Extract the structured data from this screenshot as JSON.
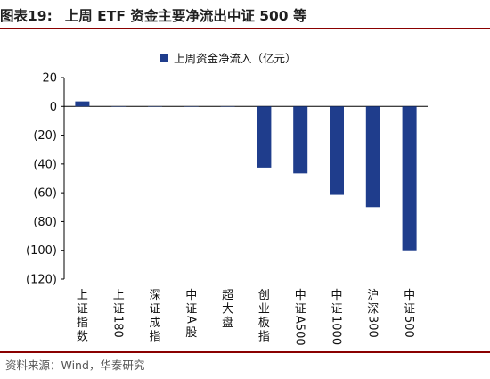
{
  "header": {
    "figure_label": "图表19:",
    "title": "上周 ETF 资金主要净流出中证 500 等"
  },
  "footer": {
    "source": "资料来源：Wind，华泰研究"
  },
  "chart_data": {
    "type": "bar",
    "title": "",
    "xlabel": "",
    "ylabel": "",
    "legend_position": "top",
    "color": "#1f3d8c",
    "categories": [
      "上证指数",
      "上证180",
      "深证成指",
      "中证A股",
      "超大盘",
      "创业板指",
      "中证A500",
      "中证1000",
      "沪深300",
      "中证500"
    ],
    "series": [
      {
        "name": "上周资金净流入（亿元）",
        "values": [
          3.5,
          0.1,
          0.1,
          0.1,
          0.1,
          -42.5,
          -46.5,
          -61.5,
          -70,
          -100
        ]
      }
    ],
    "ylim": [
      -120,
      20
    ],
    "yticks": [
      20,
      0,
      -20,
      -40,
      -60,
      -80,
      -100,
      -120
    ],
    "ytick_labels": [
      "20",
      "0",
      "(20)",
      "(40)",
      "(60)",
      "(80)",
      "(100)",
      "(120)"
    ],
    "grid": false
  }
}
